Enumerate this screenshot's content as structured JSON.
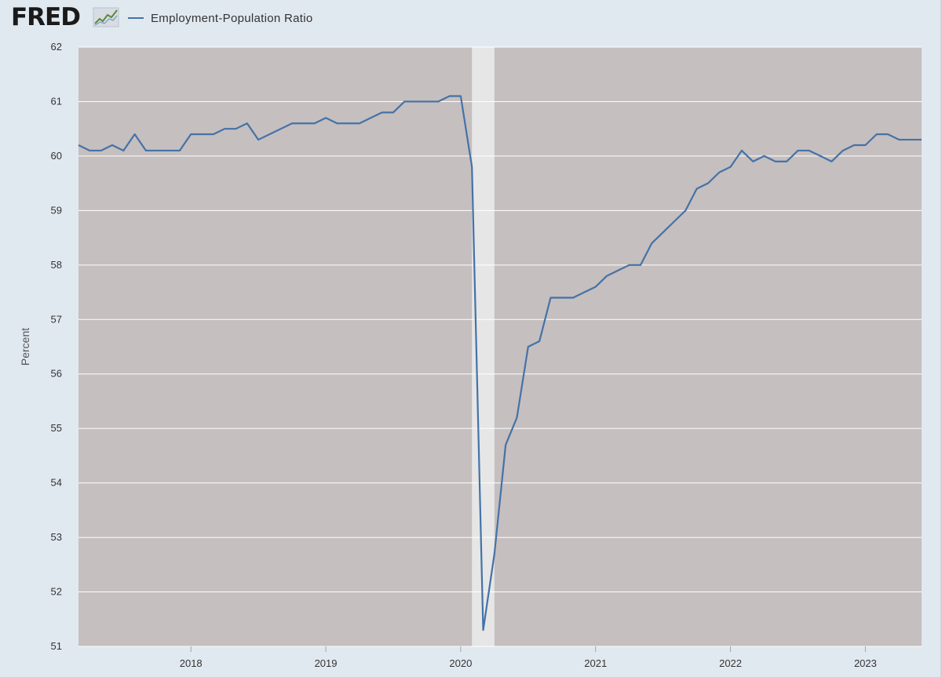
{
  "header": {
    "logo": "FRED",
    "legend_label": "Employment-Population Ratio"
  },
  "colors": {
    "plot_background": "#c5bfbf",
    "recession": "#e6e6e6",
    "series": "#4572a7",
    "grid": "#ffffff",
    "page": "#e1e9f0"
  },
  "chart_data": {
    "type": "line",
    "title": "",
    "xlabel": "",
    "ylabel": "Percent",
    "ylim": [
      51,
      62
    ],
    "yticks": [
      51,
      52,
      53,
      54,
      55,
      56,
      57,
      58,
      59,
      60,
      61,
      62
    ],
    "xlim": [
      "2017-03",
      "2023-06"
    ],
    "xticks": [
      "2018",
      "2019",
      "2020",
      "2021",
      "2022",
      "2023"
    ],
    "grid": true,
    "legend": "top-left",
    "recessions": [
      {
        "start": "2020-02",
        "end": "2020-04"
      }
    ],
    "series": [
      {
        "name": "Employment-Population Ratio",
        "x": [
          "2017-03",
          "2017-04",
          "2017-05",
          "2017-06",
          "2017-07",
          "2017-08",
          "2017-09",
          "2017-10",
          "2017-11",
          "2017-12",
          "2018-01",
          "2018-02",
          "2018-03",
          "2018-04",
          "2018-05",
          "2018-06",
          "2018-07",
          "2018-08",
          "2018-09",
          "2018-10",
          "2018-11",
          "2018-12",
          "2019-01",
          "2019-02",
          "2019-03",
          "2019-04",
          "2019-05",
          "2019-06",
          "2019-07",
          "2019-08",
          "2019-09",
          "2019-10",
          "2019-11",
          "2019-12",
          "2020-01",
          "2020-02",
          "2020-03",
          "2020-04",
          "2020-05",
          "2020-06",
          "2020-07",
          "2020-08",
          "2020-09",
          "2020-10",
          "2020-11",
          "2020-12",
          "2021-01",
          "2021-02",
          "2021-03",
          "2021-04",
          "2021-05",
          "2021-06",
          "2021-07",
          "2021-08",
          "2021-09",
          "2021-10",
          "2021-11",
          "2021-12",
          "2022-01",
          "2022-02",
          "2022-03",
          "2022-04",
          "2022-05",
          "2022-06",
          "2022-07",
          "2022-08",
          "2022-09",
          "2022-10",
          "2022-11",
          "2022-12",
          "2023-01",
          "2023-02",
          "2023-03",
          "2023-04",
          "2023-05",
          "2023-06"
        ],
        "values": [
          60.2,
          60.1,
          60.1,
          60.2,
          60.1,
          60.4,
          60.1,
          60.1,
          60.1,
          60.1,
          60.4,
          60.4,
          60.4,
          60.5,
          60.5,
          60.6,
          60.3,
          60.4,
          60.5,
          60.6,
          60.6,
          60.6,
          60.7,
          60.6,
          60.6,
          60.6,
          60.7,
          60.8,
          60.8,
          61.0,
          61.0,
          61.0,
          61.0,
          61.1,
          61.1,
          59.8,
          51.3,
          52.7,
          54.7,
          55.2,
          56.5,
          56.6,
          57.4,
          57.4,
          57.4,
          57.5,
          57.6,
          57.8,
          57.9,
          58.0,
          58.0,
          58.4,
          58.6,
          58.8,
          59.0,
          59.4,
          59.5,
          59.7,
          59.8,
          60.1,
          59.9,
          60.0,
          59.9,
          59.9,
          60.1,
          60.1,
          60.0,
          59.9,
          60.1,
          60.2,
          60.2,
          60.4,
          60.4,
          60.3,
          60.3,
          60.3
        ]
      }
    ]
  }
}
